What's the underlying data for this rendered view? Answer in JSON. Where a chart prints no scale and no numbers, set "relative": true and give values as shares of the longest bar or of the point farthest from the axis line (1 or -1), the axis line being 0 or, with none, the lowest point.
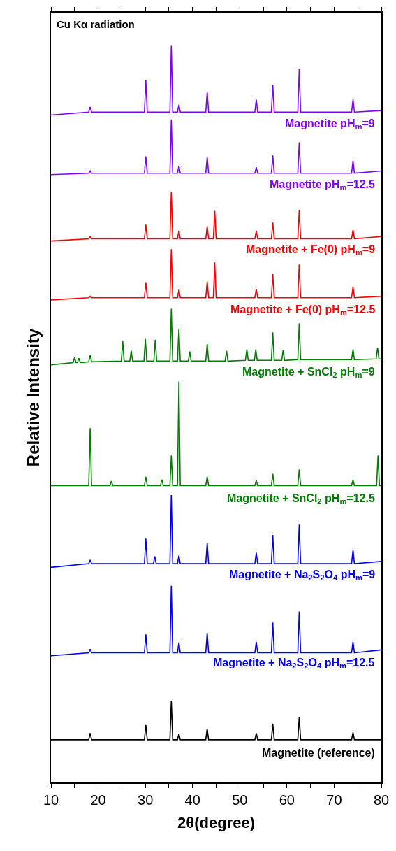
{
  "chart_data": {
    "type": "line",
    "relative": true,
    "xlabel": "2θ(degree)",
    "ylabel": "Relative Intensity",
    "annotations": [
      "Cu Kα radiation"
    ],
    "xlim": [
      10,
      80
    ],
    "xticks": [
      10,
      {
        "value": 15,
        "label": null
      },
      20,
      {
        "value": 25,
        "label": null
      },
      30,
      {
        "value": 35,
        "label": null
      },
      40,
      {
        "value": 45,
        "label": null
      },
      50,
      {
        "value": 55,
        "label": null
      },
      60,
      {
        "value": 65,
        "label": null
      },
      70,
      {
        "value": 75,
        "label": null
      },
      80
    ],
    "legend": false,
    "x": [
      10,
      18.0,
      18.3,
      18.6,
      29.8,
      30.1,
      30.4,
      35.2,
      35.5,
      35.8,
      36.8,
      37.1,
      37.4,
      42.8,
      43.1,
      43.4,
      53.2,
      53.5,
      53.8,
      56.7,
      57.0,
      57.3,
      62.3,
      62.6,
      62.9,
      73.7,
      74.0,
      74.3,
      80
    ],
    "series": [
      {
        "name": "Magnetite pH$_{m}$=9",
        "color": "#8000ff",
        "values": [
          0.906,
          0.91,
          0.917,
          0.91,
          0.91,
          0.953,
          0.91,
          0.91,
          1.0,
          0.91,
          0.91,
          0.92,
          0.91,
          0.91,
          0.937,
          0.91,
          0.91,
          0.927,
          0.91,
          0.91,
          0.947,
          0.91,
          0.91,
          0.968,
          0.91,
          0.91,
          0.927,
          0.91,
          0.912
        ]
      },
      {
        "name": "Magnetite pH$_{m}$=12.5",
        "color": "#8000ff",
        "values": [
          0.825,
          0.827,
          0.83,
          0.827,
          0.827,
          0.85,
          0.827,
          0.827,
          0.9,
          0.827,
          0.827,
          0.837,
          0.827,
          0.827,
          0.849,
          0.827,
          0.827,
          0.835,
          0.827,
          0.827,
          0.851,
          0.827,
          0.827,
          0.869,
          0.827,
          0.827,
          0.844,
          0.827,
          0.83
        ]
      },
      {
        "name": "Magnetite + Fe(0) pH$_{m}$=9",
        "color": "#ff0000",
        "x": [
          10,
          18.0,
          18.3,
          18.6,
          29.8,
          30.1,
          30.4,
          35.2,
          35.5,
          35.8,
          36.8,
          37.1,
          37.4,
          42.8,
          43.1,
          43.4,
          44.4,
          44.7,
          45.0,
          53.2,
          53.5,
          53.8,
          56.7,
          57.0,
          57.3,
          62.3,
          62.6,
          62.9,
          73.7,
          74.0,
          74.3,
          80
        ],
        "values": [
          0.735,
          0.738,
          0.741,
          0.738,
          0.738,
          0.757,
          0.738,
          0.738,
          0.802,
          0.738,
          0.738,
          0.749,
          0.738,
          0.738,
          0.755,
          0.738,
          0.738,
          0.776,
          0.738,
          0.738,
          0.749,
          0.738,
          0.738,
          0.76,
          0.738,
          0.738,
          0.777,
          0.738,
          0.738,
          0.75,
          0.738,
          0.741
        ]
      },
      {
        "name": "Magnetite + Fe(0) pH$_{m}$=12.5",
        "color": "#ff0000",
        "x": [
          10,
          18.0,
          18.3,
          18.6,
          29.8,
          30.1,
          30.4,
          35.2,
          35.5,
          35.8,
          36.8,
          37.1,
          37.4,
          42.8,
          43.1,
          43.4,
          44.4,
          44.7,
          45.0,
          53.2,
          53.5,
          53.8,
          56.7,
          57.0,
          57.3,
          62.3,
          62.6,
          62.9,
          73.7,
          74.0,
          74.3,
          80
        ],
        "values": [
          0.655,
          0.658,
          0.66,
          0.658,
          0.658,
          0.679,
          0.658,
          0.658,
          0.724,
          0.658,
          0.658,
          0.669,
          0.658,
          0.658,
          0.68,
          0.658,
          0.658,
          0.706,
          0.658,
          0.658,
          0.67,
          0.658,
          0.658,
          0.69,
          0.658,
          0.658,
          0.703,
          0.658,
          0.658,
          0.673,
          0.658,
          0.66
        ]
      },
      {
        "name": "Magnetite + SnCl$_{2}$ pH$_{m}$=9",
        "color": "#008000",
        "x": [
          10,
          14.7,
          15.0,
          15.3,
          15.6,
          15.9,
          16.2,
          18.0,
          18.3,
          18.6,
          24.9,
          25.2,
          25.5,
          26.7,
          27.0,
          27.3,
          29.7,
          30.0,
          30.3,
          31.8,
          32.1,
          32.4,
          35.2,
          35.5,
          35.8,
          36.8,
          37.1,
          37.4,
          39.1,
          39.4,
          39.7,
          42.8,
          43.1,
          43.4,
          46.9,
          47.2,
          47.5,
          51.2,
          51.5,
          51.8,
          53.1,
          53.4,
          53.7,
          56.7,
          57.0,
          57.3,
          58.9,
          59.2,
          59.5,
          62.3,
          62.6,
          62.9,
          73.7,
          74.0,
          74.3,
          78.9,
          79.2,
          79.5,
          80
        ],
        "values": [
          0.567,
          0.57,
          0.577,
          0.57,
          0.57,
          0.576,
          0.57,
          0.571,
          0.58,
          0.571,
          0.572,
          0.599,
          0.572,
          0.572,
          0.586,
          0.572,
          0.572,
          0.602,
          0.572,
          0.572,
          0.601,
          0.572,
          0.572,
          0.643,
          0.572,
          0.572,
          0.616,
          0.572,
          0.572,
          0.585,
          0.572,
          0.572,
          0.595,
          0.572,
          0.572,
          0.586,
          0.572,
          0.573,
          0.588,
          0.573,
          0.573,
          0.588,
          0.573,
          0.573,
          0.611,
          0.573,
          0.573,
          0.587,
          0.573,
          0.574,
          0.623,
          0.574,
          0.574,
          0.588,
          0.574,
          0.575,
          0.59,
          0.575,
          0.575
        ]
      },
      {
        "name": "Magnetite + SnCl$_{2}$ pH$_{m}$=12.5",
        "color": "#008000",
        "x": [
          10,
          18.0,
          18.3,
          18.6,
          22.5,
          22.8,
          23.1,
          29.8,
          30.1,
          30.4,
          33.2,
          33.5,
          33.8,
          35.2,
          35.5,
          35.8,
          36.8,
          37.1,
          37.4,
          42.8,
          43.1,
          43.4,
          53.2,
          53.5,
          53.8,
          56.7,
          57.0,
          57.3,
          62.3,
          62.6,
          62.9,
          73.7,
          74.0,
          74.3,
          79.0,
          79.3,
          79.6,
          80
        ],
        "values": [
          0.403,
          0.403,
          0.481,
          0.403,
          0.403,
          0.409,
          0.403,
          0.403,
          0.415,
          0.403,
          0.403,
          0.411,
          0.403,
          0.403,
          0.444,
          0.403,
          0.403,
          0.544,
          0.403,
          0.403,
          0.415,
          0.403,
          0.403,
          0.41,
          0.403,
          0.403,
          0.419,
          0.403,
          0.403,
          0.425,
          0.403,
          0.403,
          0.411,
          0.403,
          0.403,
          0.444,
          0.403,
          0.403
        ]
      },
      {
        "name": "Magnetite + Na$_{2}$S$_{2}$O$_{4}$ pH$_{m}$=9",
        "color": "#0000ff",
        "x": [
          10,
          18.0,
          18.3,
          18.6,
          29.8,
          30.1,
          30.4,
          31.7,
          32.0,
          32.3,
          35.2,
          35.5,
          35.8,
          36.8,
          37.1,
          37.4,
          42.8,
          43.1,
          43.4,
          53.2,
          53.5,
          53.8,
          56.7,
          57.0,
          57.3,
          62.3,
          62.6,
          62.9,
          73.7,
          74.0,
          74.3,
          80
        ],
        "values": [
          0.292,
          0.297,
          0.302,
          0.297,
          0.297,
          0.331,
          0.297,
          0.297,
          0.307,
          0.297,
          0.297,
          0.39,
          0.297,
          0.297,
          0.308,
          0.297,
          0.297,
          0.325,
          0.297,
          0.297,
          0.312,
          0.297,
          0.297,
          0.336,
          0.297,
          0.297,
          0.35,
          0.297,
          0.297,
          0.316,
          0.297,
          0.3
        ]
      },
      {
        "name": "Magnetite + Na$_{2}$S$_{2}$O$_{4}$ pH$_{m}$=12.5",
        "color": "#0000ff",
        "values": [
          0.172,
          0.176,
          0.181,
          0.176,
          0.176,
          0.201,
          0.176,
          0.176,
          0.267,
          0.176,
          0.176,
          0.19,
          0.176,
          0.176,
          0.203,
          0.176,
          0.176,
          0.191,
          0.176,
          0.176,
          0.217,
          0.176,
          0.176,
          0.232,
          0.176,
          0.176,
          0.191,
          0.176,
          0.18
        ]
      },
      {
        "name": "Magnetite (reference)",
        "color": "#000000",
        "values": [
          0.058,
          0.058,
          0.067,
          0.058,
          0.058,
          0.078,
          0.058,
          0.058,
          0.111,
          0.058,
          0.058,
          0.066,
          0.058,
          0.058,
          0.073,
          0.058,
          0.058,
          0.067,
          0.058,
          0.058,
          0.08,
          0.058,
          0.058,
          0.089,
          0.058,
          0.058,
          0.068,
          0.058,
          0.058
        ]
      }
    ]
  }
}
